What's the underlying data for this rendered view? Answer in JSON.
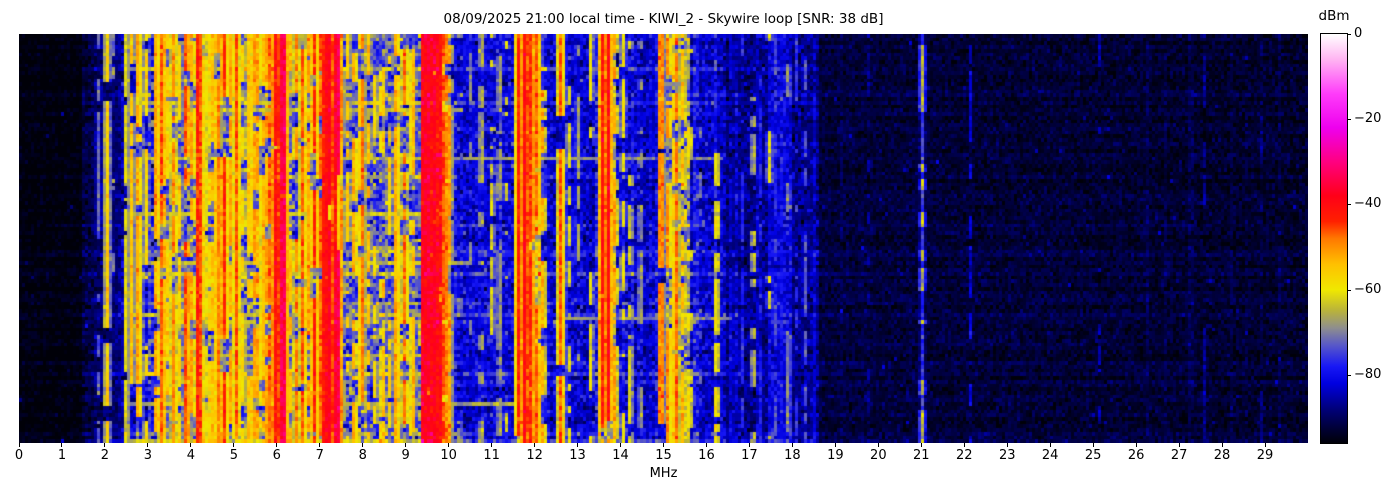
{
  "figure": {
    "title": "08/09/2025 21:00 local time - KIWI_2 - Skywire loop [SNR: 38 dB]",
    "x_axis_label": "MHz",
    "colorbar_label": "dBm"
  },
  "chart_data": {
    "type": "heatmap",
    "title": "08/09/2025 21:00 local time - KIWI_2 - Skywire loop [SNR: 38 dB]",
    "xlabel": "MHz",
    "ylabel": "",
    "x_range": [
      0,
      30
    ],
    "x_ticks": [
      0,
      1,
      2,
      3,
      4,
      5,
      6,
      7,
      8,
      9,
      10,
      11,
      12,
      13,
      14,
      15,
      16,
      17,
      18,
      19,
      20,
      21,
      22,
      23,
      24,
      25,
      26,
      27,
      28,
      29
    ],
    "grid_lines": false,
    "colorbar": {
      "label": "dBm",
      "vmax": 0,
      "vmin": -96,
      "ticks": [
        {
          "value": 0,
          "label": "0"
        },
        {
          "value": -20,
          "label": "−20"
        },
        {
          "value": -40,
          "label": "−40"
        },
        {
          "value": -60,
          "label": "−60"
        },
        {
          "value": -80,
          "label": "−80"
        }
      ],
      "colormap_stops": [
        [
          0,
          "#ffffff"
        ],
        [
          -6,
          "#ffb4f2"
        ],
        [
          -14,
          "#ff3cfa"
        ],
        [
          -22,
          "#ee00ee"
        ],
        [
          -30,
          "#ff0080"
        ],
        [
          -38,
          "#ff0018"
        ],
        [
          -44,
          "#ff2000"
        ],
        [
          -48,
          "#ff7800"
        ],
        [
          -54,
          "#ffc000"
        ],
        [
          -60,
          "#f0e800"
        ],
        [
          -65,
          "#b8b23c"
        ],
        [
          -69,
          "#8e8e8e"
        ],
        [
          -73,
          "#5858c8"
        ],
        [
          -78,
          "#1818f5"
        ],
        [
          -82,
          "#0000e0"
        ],
        [
          -88,
          "#00007a"
        ],
        [
          -93,
          "#000030"
        ],
        [
          -96,
          "#000008"
        ]
      ]
    },
    "grid": {
      "cols": 430,
      "rows": 110
    },
    "seed": 20250809,
    "noise_floor_segments": [
      [
        0,
        1.45,
        -96,
        -96,
        1.3
      ],
      [
        1.45,
        2.4,
        -93,
        -88,
        2.2
      ],
      [
        2.4,
        3.1,
        -86,
        -83,
        3.5
      ],
      [
        3.1,
        9.35,
        -81,
        -81,
        5.5
      ],
      [
        9.35,
        10.05,
        -79,
        -79,
        5
      ],
      [
        10.05,
        11.5,
        -83,
        -83,
        3.5
      ],
      [
        11.5,
        12.3,
        -81,
        -81,
        4
      ],
      [
        12.3,
        14.5,
        -84,
        -84,
        3.5
      ],
      [
        14.5,
        16.45,
        -85,
        -85,
        3.2
      ],
      [
        16.45,
        18.65,
        -88,
        -88,
        2.8
      ],
      [
        18.65,
        30,
        -92.5,
        -93.5,
        1.8
      ]
    ],
    "activity_regions": [
      [
        0,
        1.5,
        0.12,
        0.02,
        2
      ],
      [
        1.5,
        2.55,
        0.3,
        0.1,
        4
      ],
      [
        2.55,
        9.35,
        1.0,
        0.3,
        9
      ],
      [
        9.35,
        10.05,
        0.6,
        0.25,
        7
      ],
      [
        10.05,
        16.45,
        0.55,
        0.22,
        7
      ],
      [
        16.45,
        18.65,
        0.3,
        0.28,
        6
      ],
      [
        18.65,
        30,
        0.12,
        0.06,
        3
      ]
    ],
    "bands": [
      [
        3.2,
        4.6,
        -74,
        6
      ],
      [
        4.6,
        5.9,
        -75,
        6
      ],
      [
        5.9,
        6.25,
        -64,
        6
      ],
      [
        6.25,
        7.1,
        -76,
        6
      ],
      [
        7.1,
        7.5,
        -64,
        6
      ],
      [
        7.5,
        9.35,
        -77,
        6
      ],
      [
        9.38,
        9.82,
        -44,
        5
      ],
      [
        11.6,
        12.15,
        -65,
        6
      ],
      [
        13.5,
        13.9,
        -68,
        6
      ],
      [
        15.05,
        15.62,
        -70,
        6
      ],
      [
        17.45,
        18.0,
        -83,
        3
      ]
    ],
    "streak_rows": [
      [
        0.18,
        2.6,
        10.3,
        10
      ],
      [
        0.3,
        2.6,
        16.4,
        9
      ],
      [
        0.44,
        2.6,
        9.5,
        12
      ],
      [
        0.55,
        2.6,
        10.5,
        10
      ],
      [
        0.695,
        12.5,
        16.6,
        10
      ],
      [
        0.78,
        2.6,
        9.5,
        11
      ],
      [
        0.9,
        2.6,
        12.0,
        10
      ]
    ],
    "carriers": [
      [
        1.85,
        -72,
        0.5,
        0.02
      ],
      [
        2.05,
        -56,
        0.95,
        0.022
      ],
      [
        2.17,
        -67,
        0.45,
        0.02
      ],
      [
        2.5,
        -60,
        0.75,
        0.02
      ],
      [
        2.62,
        -55,
        0.7,
        0.02
      ],
      [
        2.78,
        -52,
        0.75,
        0.022
      ],
      [
        2.95,
        -58,
        0.6,
        0.02
      ],
      [
        3.2,
        -52,
        0.85,
        0.025
      ],
      [
        3.33,
        -47,
        0.9,
        0.028
      ],
      [
        3.48,
        -55,
        0.7,
        0.02
      ],
      [
        3.6,
        -50,
        0.85,
        0.025
      ],
      [
        3.73,
        -57,
        0.6,
        0.02
      ],
      [
        3.89,
        -46,
        0.9,
        0.028
      ],
      [
        4.03,
        -52,
        0.8,
        0.022
      ],
      [
        4.18,
        -43,
        0.95,
        0.03
      ],
      [
        4.32,
        -55,
        0.7,
        0.02
      ],
      [
        4.47,
        -52,
        0.7,
        0.02
      ],
      [
        4.62,
        -49,
        0.8,
        0.024
      ],
      [
        4.77,
        -44,
        0.92,
        0.03
      ],
      [
        4.93,
        -52,
        0.7,
        0.02
      ],
      [
        5.06,
        -47,
        0.85,
        0.026
      ],
      [
        5.22,
        -57,
        0.5,
        0.02
      ],
      [
        5.37,
        -52,
        0.7,
        0.02
      ],
      [
        5.51,
        -49,
        0.8,
        0.024
      ],
      [
        5.66,
        -52,
        0.6,
        0.02
      ],
      [
        5.8,
        -47,
        0.8,
        0.026
      ],
      [
        5.96,
        -41,
        0.96,
        0.032
      ],
      [
        6.07,
        -43,
        0.94,
        0.03
      ],
      [
        6.14,
        -30,
        0.97,
        0.02
      ],
      [
        6.18,
        -45,
        0.9,
        0.028
      ],
      [
        6.31,
        -54,
        0.6,
        0.02
      ],
      [
        6.45,
        -50,
        0.7,
        0.022
      ],
      [
        6.6,
        -47,
        0.8,
        0.024
      ],
      [
        6.73,
        -52,
        0.6,
        0.02
      ],
      [
        6.87,
        -44,
        0.9,
        0.028
      ],
      [
        7.0,
        -47,
        0.85,
        0.026
      ],
      [
        7.12,
        -40,
        0.96,
        0.032
      ],
      [
        7.23,
        -38,
        0.97,
        0.034
      ],
      [
        7.35,
        -42,
        0.94,
        0.03
      ],
      [
        7.4,
        -31,
        0.97,
        0.02
      ],
      [
        7.49,
        -50,
        0.7,
        0.02
      ],
      [
        7.65,
        -56,
        0.5,
        0.02
      ],
      [
        7.8,
        -52,
        0.6,
        0.02
      ],
      [
        7.97,
        -49,
        0.75,
        0.022
      ],
      [
        8.12,
        -54,
        0.6,
        0.02
      ],
      [
        8.28,
        -57,
        0.5,
        0.02
      ],
      [
        8.45,
        -53,
        0.6,
        0.02
      ],
      [
        8.62,
        -57,
        0.5,
        0.02
      ],
      [
        8.78,
        -51,
        0.65,
        0.02
      ],
      [
        8.97,
        -48,
        0.75,
        0.022
      ],
      [
        9.15,
        -53,
        0.6,
        0.02
      ],
      [
        9.42,
        -39,
        0.98,
        0.045
      ],
      [
        9.53,
        -37,
        0.98,
        0.05
      ],
      [
        9.66,
        -38,
        0.98,
        0.05
      ],
      [
        9.78,
        -41,
        0.96,
        0.04
      ],
      [
        9.9,
        -46,
        0.9,
        0.03
      ],
      [
        10.0,
        -52,
        0.8,
        0.024
      ],
      [
        10.25,
        -66,
        0.35,
        0.02
      ],
      [
        10.5,
        -70,
        0.3,
        0.02
      ],
      [
        10.75,
        -64,
        0.4,
        0.02
      ],
      [
        11.0,
        -62,
        0.45,
        0.02
      ],
      [
        11.17,
        -66,
        0.35,
        0.02
      ],
      [
        11.33,
        -63,
        0.4,
        0.02
      ],
      [
        11.63,
        -43,
        0.94,
        0.03
      ],
      [
        11.77,
        -40,
        0.96,
        0.032
      ],
      [
        11.91,
        -44,
        0.93,
        0.03
      ],
      [
        12.05,
        -47,
        0.9,
        0.026
      ],
      [
        12.19,
        -53,
        0.7,
        0.022
      ],
      [
        12.6,
        -47,
        0.85,
        0.026
      ],
      [
        12.79,
        -62,
        0.4,
        0.02
      ],
      [
        13.0,
        -67,
        0.3,
        0.02
      ],
      [
        13.3,
        -61,
        0.45,
        0.02
      ],
      [
        13.57,
        -42,
        0.94,
        0.03
      ],
      [
        13.7,
        -40,
        0.96,
        0.032
      ],
      [
        13.86,
        -52,
        0.7,
        0.022
      ],
      [
        14.05,
        -60,
        0.5,
        0.02
      ],
      [
        14.22,
        -62,
        0.4,
        0.02
      ],
      [
        14.45,
        -67,
        0.3,
        0.02
      ],
      [
        14.93,
        -47,
        0.88,
        0.026
      ],
      [
        15.12,
        -50,
        0.8,
        0.024
      ],
      [
        15.3,
        -48,
        0.85,
        0.026
      ],
      [
        15.47,
        -54,
        0.6,
        0.02
      ],
      [
        15.62,
        -57,
        0.5,
        0.02
      ],
      [
        15.85,
        -71,
        0.3,
        0.02
      ],
      [
        16.25,
        -58,
        0.5,
        0.022
      ],
      [
        16.6,
        -79,
        0.6,
        0.02
      ],
      [
        16.83,
        -77,
        0.6,
        0.02
      ],
      [
        17.1,
        -64,
        0.3,
        0.02
      ],
      [
        17.28,
        -78,
        0.6,
        0.02
      ],
      [
        17.48,
        -62,
        0.28,
        0.02
      ],
      [
        17.62,
        -75,
        0.6,
        0.02
      ],
      [
        17.78,
        -77,
        0.5,
        0.02
      ],
      [
        17.92,
        -69,
        0.35,
        0.02
      ],
      [
        18.1,
        -77,
        0.5,
        0.02
      ],
      [
        18.3,
        -74,
        0.5,
        0.02
      ],
      [
        18.5,
        -81,
        0.4,
        0.02
      ],
      [
        19.8,
        -87,
        0.4,
        0.02
      ],
      [
        21.03,
        -76,
        0.95,
        0.02
      ],
      [
        21.03,
        -64,
        0.35,
        0.018
      ],
      [
        22.15,
        -83,
        0.5,
        0.018
      ],
      [
        25.15,
        -85,
        0.5,
        0.018
      ],
      [
        27.6,
        -87,
        0.45,
        0.018
      ],
      [
        28.9,
        -88,
        0.4,
        0.018
      ]
    ]
  }
}
